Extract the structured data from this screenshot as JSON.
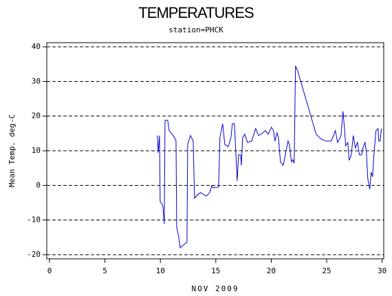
{
  "chart_data": {
    "type": "line",
    "title": "TEMPERATURES",
    "subtitle": "station=PHCK",
    "x_label": "NOV 2009",
    "y_label": "Mean Temp. deg-C",
    "xlim": [
      -0.25,
      30.15
    ],
    "xticks": [
      0,
      5,
      10,
      15,
      20,
      25,
      30
    ],
    "ylim": [
      -21.2,
      41.2
    ],
    "yticks": [
      -20,
      -10,
      0,
      10,
      20,
      30,
      40
    ],
    "grid": true,
    "series": [
      {
        "color": "#0000cc",
        "x": [
          9.73,
          9.8,
          9.92,
          9.98,
          10.11,
          10.23,
          10.35,
          10.42,
          10.66,
          10.79,
          11.04,
          11.28,
          11.41,
          11.47,
          11.66,
          11.78,
          12.4,
          12.46,
          12.71,
          12.96,
          13.08,
          13.33,
          13.64,
          14.13,
          14.45,
          14.63,
          14.76,
          15.25,
          15.37,
          15.62,
          15.81,
          16.12,
          16.37,
          16.49,
          16.68,
          16.8,
          16.93,
          17.05,
          17.24,
          17.3,
          17.42,
          17.61,
          17.86,
          18.23,
          18.6,
          18.85,
          19.09,
          19.47,
          19.72,
          20.02,
          20.21,
          20.33,
          20.52,
          20.65,
          20.83,
          21.08,
          21.33,
          21.51,
          21.64,
          21.82,
          21.95,
          22.07,
          22.19,
          22.38,
          24.05,
          24.49,
          24.92,
          25.42,
          25.79,
          25.98,
          26.29,
          26.47,
          26.6,
          26.72,
          26.91,
          27.03,
          27.22,
          27.4,
          27.59,
          27.78,
          27.96,
          28.15,
          28.27,
          28.46,
          28.58,
          28.71,
          28.89,
          29.01,
          29.14,
          29.26,
          29.45,
          29.64,
          29.7,
          29.82,
          29.94
        ],
        "values": [
          14.4,
          9.4,
          14.4,
          -4.7,
          -5.1,
          -6.1,
          -11.1,
          18.8,
          18.8,
          15.8,
          14.8,
          13.8,
          12.8,
          -12,
          -15,
          -18,
          -16.4,
          11.8,
          14.4,
          12.8,
          -3.7,
          -2.7,
          -2.1,
          -3.1,
          -2.1,
          -0.1,
          -0.7,
          -0.5,
          13.8,
          17.8,
          11.8,
          11.2,
          13.8,
          17.8,
          17.8,
          9.8,
          1.3,
          8.8,
          8.8,
          5.8,
          13.8,
          14.8,
          12.4,
          12.8,
          16.4,
          14.4,
          14.8,
          15.8,
          14.8,
          16.8,
          15.8,
          12.8,
          15.2,
          13.8,
          6.8,
          5.8,
          9.8,
          12.8,
          11.8,
          6.8,
          7.4,
          6.4,
          34.5,
          33.1,
          14.8,
          13.4,
          12.8,
          12.8,
          15.8,
          12.4,
          14.2,
          21.4,
          16.8,
          11.4,
          12.4,
          7.2,
          8.8,
          14.4,
          10.8,
          12.4,
          8.8,
          8.8,
          10.8,
          12.4,
          9.8,
          1.9,
          -1.1,
          3.8,
          2.5,
          8.8,
          15.8,
          16.4,
          12.8,
          12.8,
          16.4
        ]
      }
    ]
  }
}
